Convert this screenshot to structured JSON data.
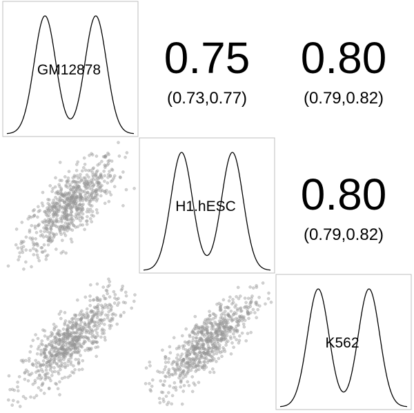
{
  "chart_data": {
    "type": "scatter",
    "layout": "pairs-matrix",
    "variables": [
      "GM12878",
      "H1.hESC",
      "K562"
    ],
    "correlations": [
      {
        "row": "GM12878",
        "col": "H1.hESC",
        "value": "0.75",
        "ci": "(0.73,0.77)"
      },
      {
        "row": "GM12878",
        "col": "K562",
        "value": "0.80",
        "ci": "(0.79,0.82)"
      },
      {
        "row": "H1.hESC",
        "col": "K562",
        "value": "0.80",
        "ci": "(0.79,0.82)"
      }
    ],
    "density": {
      "shape": "bimodal",
      "peaks": [
        0.3,
        0.7
      ],
      "peak_height": 0.95,
      "valley_height": 0.45
    },
    "scatter_points_per_panel": 700,
    "point_color": "#9a9a9a"
  }
}
